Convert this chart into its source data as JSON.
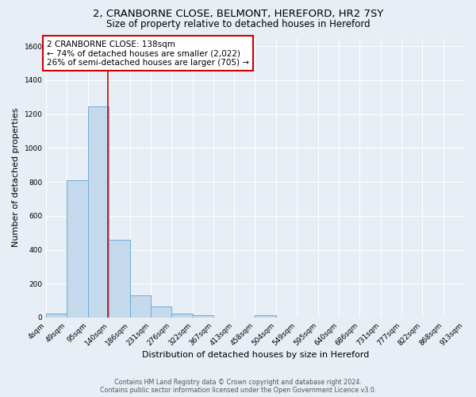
{
  "title1": "2, CRANBORNE CLOSE, BELMONT, HEREFORD, HR2 7SY",
  "title2": "Size of property relative to detached houses in Hereford",
  "xlabel": "Distribution of detached houses by size in Hereford",
  "ylabel": "Number of detached properties",
  "bin_edges": [
    4,
    49,
    95,
    140,
    186,
    231,
    276,
    322,
    367,
    413,
    458,
    504,
    549,
    595,
    640,
    686,
    731,
    777,
    822,
    868,
    913
  ],
  "bar_heights": [
    25,
    810,
    1245,
    460,
    130,
    65,
    25,
    15,
    0,
    0,
    15,
    0,
    0,
    0,
    0,
    0,
    0,
    0,
    0,
    0
  ],
  "bar_color": "#c5d9ec",
  "bar_edge_color": "#6aacd4",
  "bar_linewidth": 0.7,
  "redline_x": 138,
  "redline_color": "#cc0000",
  "ylim": [
    0,
    1650
  ],
  "yticks": [
    0,
    200,
    400,
    600,
    800,
    1000,
    1200,
    1400,
    1600
  ],
  "bg_color": "#e8eef5",
  "annotation_title": "2 CRANBORNE CLOSE: 138sqm",
  "annotation_line1": "← 74% of detached houses are smaller (2,022)",
  "annotation_line2": "26% of semi-detached houses are larger (705) →",
  "annotation_box_edgecolor": "#cc0000",
  "footer_line1": "Contains HM Land Registry data © Crown copyright and database right 2024.",
  "footer_line2": "Contains public sector information licensed under the Open Government Licence v3.0.",
  "title1_fontsize": 9.5,
  "title2_fontsize": 8.5,
  "xlabel_fontsize": 8,
  "ylabel_fontsize": 8,
  "tick_fontsize": 6.5,
  "annotation_fontsize": 7.5,
  "footer_fontsize": 5.8
}
